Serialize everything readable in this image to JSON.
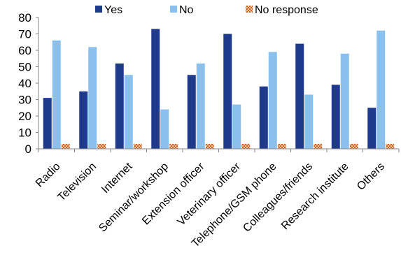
{
  "chart_data": {
    "type": "bar",
    "categories": [
      "Radio",
      "Television",
      "Internet",
      "Seminar/workshop",
      "Extension officer",
      "Veterinary officer",
      "Telephone/GSM phone",
      "Colleagues/friends",
      "Research institute",
      "Others"
    ],
    "series": [
      {
        "name": "Yes",
        "color": "#1f3a8a",
        "values": [
          31,
          35,
          52,
          73,
          45,
          70,
          38,
          64,
          39,
          25
        ]
      },
      {
        "name": "No",
        "color": "#8cc0ec",
        "values": [
          66,
          62,
          45,
          24,
          52,
          27,
          59,
          33,
          58,
          72
        ]
      },
      {
        "name": "No response",
        "color": "#e2904f",
        "pattern": "checker",
        "values": [
          3,
          3,
          3,
          3,
          3,
          3,
          3,
          3,
          3,
          3
        ]
      }
    ],
    "yticks": [
      "0",
      "10",
      "20",
      "30",
      "40",
      "50",
      "60",
      "70",
      "80"
    ],
    "ylim": [
      0,
      80
    ],
    "legend_position": "top",
    "grid": false
  }
}
